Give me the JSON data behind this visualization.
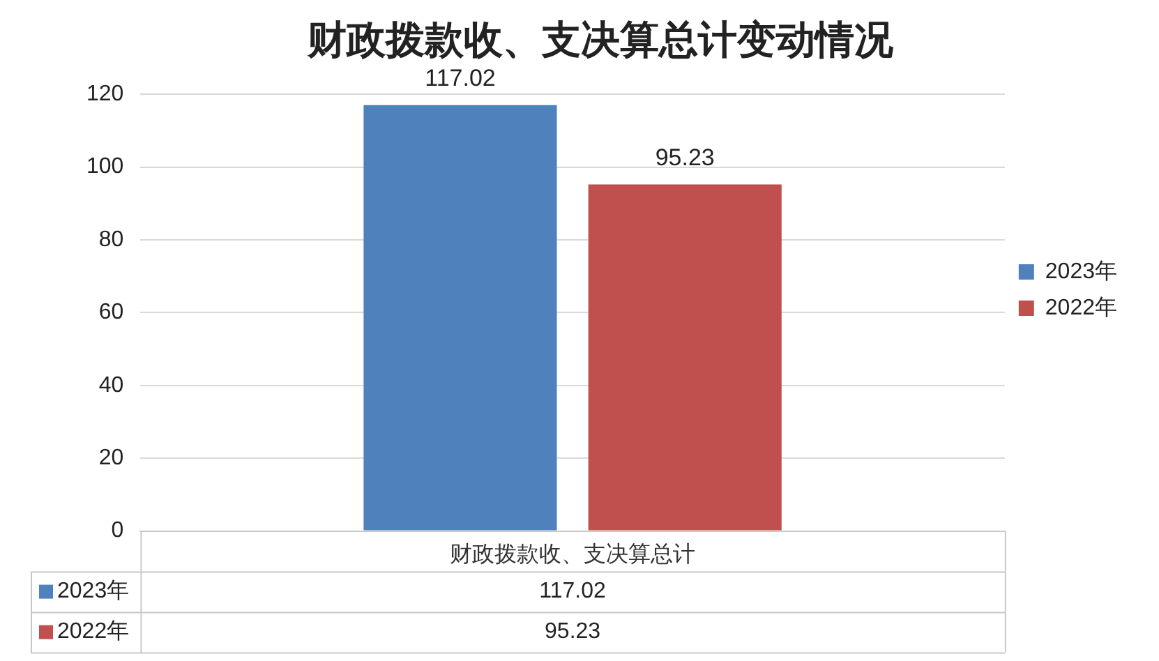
{
  "chart_data": {
    "type": "bar",
    "title": "财政拨款收、支决算总计变动情况",
    "categories": [
      "财政拨款收、支决算总计"
    ],
    "series": [
      {
        "name": "2023年",
        "color": "#4f81bd",
        "values": [
          117.02
        ],
        "value_labels": [
          "117.02"
        ]
      },
      {
        "name": "2022年",
        "color": "#c0504d",
        "values": [
          95.23
        ],
        "value_labels": [
          "95.23"
        ]
      }
    ],
    "ylim": [
      0,
      120
    ],
    "yticks": [
      0,
      20,
      40,
      60,
      80,
      100,
      120
    ],
    "grid": "y",
    "legend": "right",
    "annotations": [
      "117.02",
      "95.23"
    ]
  }
}
